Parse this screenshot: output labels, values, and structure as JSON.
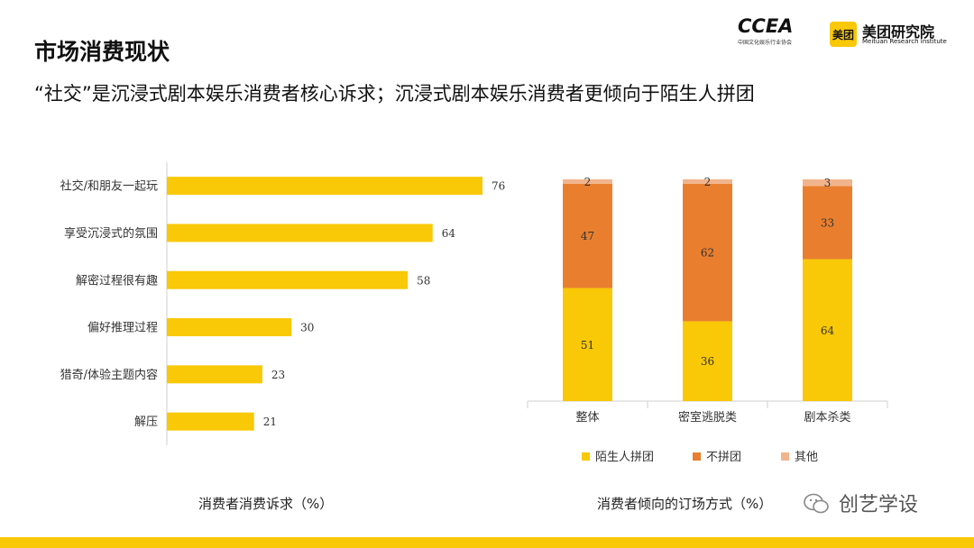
{
  "header": {
    "title": "市场消费现状",
    "subtitle": "“社交”是沉浸式剧本娱乐消费者核心诉求；沉浸式剧本娱乐消费者更倾向于陌生人拼团"
  },
  "logos": {
    "ccea_word": "CCEA",
    "ccea_sub": "中国文化娱乐行业协会",
    "meituan_badge": "美团",
    "meituan_name": "美团研究院",
    "meituan_en": "Meituan Research Institute"
  },
  "colors": {
    "yellow": "#f9c806",
    "orange": "#e97f2e",
    "peach": "#f2b48c"
  },
  "chart_data": [
    {
      "type": "bar",
      "orientation": "horizontal",
      "categories": [
        "社交/和朋友一起玩",
        "享受沉浸式的氛围",
        "解密过程很有趣",
        "偏好推理过程",
        "猎奇/体验主题内容",
        "解压"
      ],
      "values": [
        76,
        64,
        58,
        30,
        23,
        21
      ],
      "xlim": [
        0,
        80
      ],
      "caption": "消费者消费诉求（%）"
    },
    {
      "type": "bar",
      "stacked": true,
      "categories": [
        "整体",
        "密室逃脱类",
        "剧本杀类"
      ],
      "series": [
        {
          "name": "陌生人拼团",
          "values": [
            51,
            36,
            64
          ]
        },
        {
          "name": "不拼团",
          "values": [
            47,
            62,
            33
          ]
        },
        {
          "name": "其他",
          "values": [
            2,
            2,
            3
          ]
        }
      ],
      "ylim": [
        0,
        100
      ],
      "legend_position": "bottom",
      "caption": "消费者倾向的订场方式（%）"
    }
  ],
  "watermark": {
    "text": "创艺学设"
  }
}
